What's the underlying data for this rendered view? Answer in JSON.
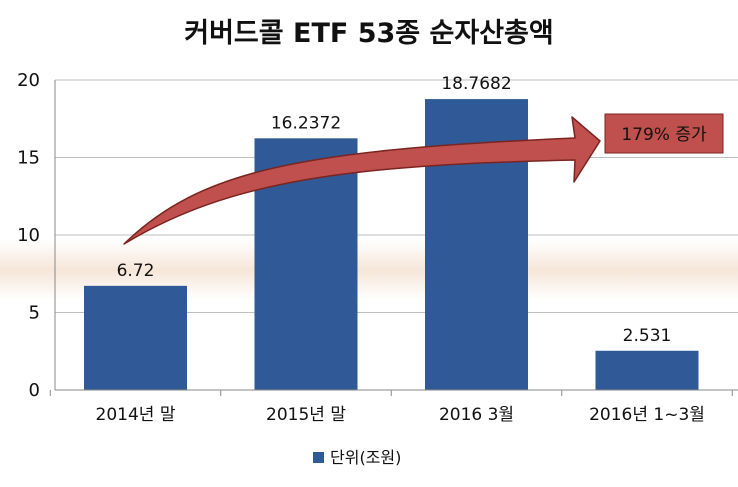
{
  "chart_data": {
    "type": "bar",
    "title": "커버드콜 ETF 53종  순자산총액",
    "categories": [
      "2014년 말",
      "2015년 말",
      "2016 3월",
      "2016년 1~3월"
    ],
    "series": [
      {
        "name": "단위(조원)",
        "values": [
          6.72,
          16.2372,
          18.7682,
          2.531
        ],
        "value_labels": [
          "6.72",
          "16.2372",
          "18.7682",
          "2.531"
        ]
      }
    ],
    "ylim": [
      0,
      20
    ],
    "yticks": [
      0,
      5,
      10,
      15,
      20
    ],
    "grid": true,
    "legend": "bottom",
    "annotation": {
      "text": "179% 증가",
      "arrow_from_category": "2014년 말",
      "arrow_to_category": "2016 3월"
    }
  },
  "colors": {
    "bar": "#2F5997",
    "arrow_fill": "#C0504D",
    "arrow_stroke": "#7B2420",
    "annotation_fill": "#C0504D",
    "grid": "#BFBFBF",
    "band": "#F6E6D9"
  }
}
